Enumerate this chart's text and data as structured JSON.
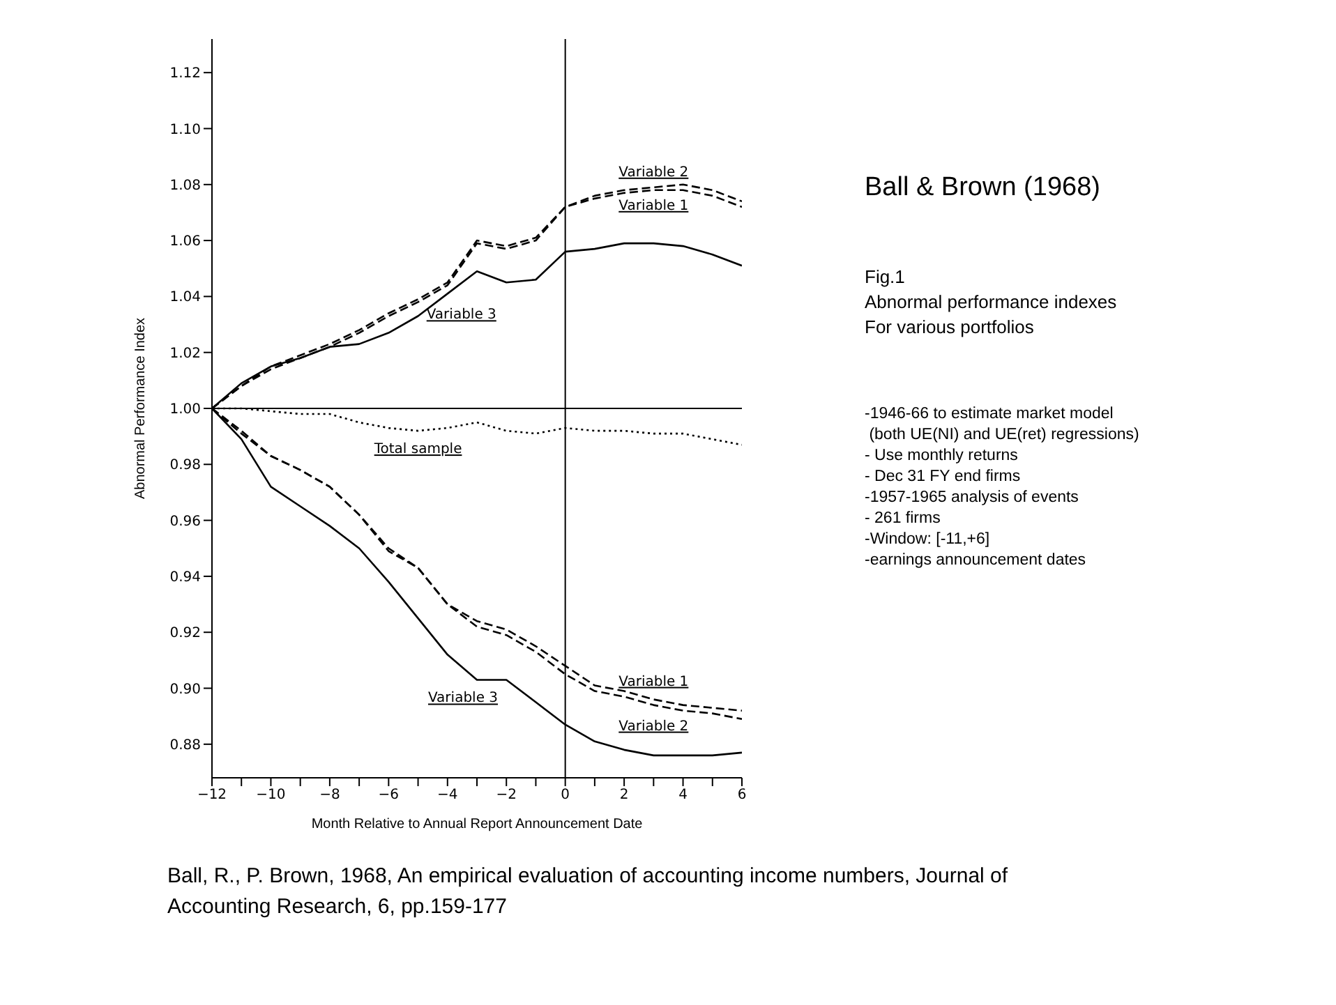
{
  "chart_data": {
    "type": "line",
    "title": "Ball & Brown (1968)",
    "subtitle": "Fig.1\nAbnormal performance indexes\nFor various portfolios",
    "xlabel": "Month Relative to Annual Report  Announcement Date",
    "ylabel": "Abnormal Performance Index",
    "x": [
      -12,
      -11,
      -10,
      -9,
      -8,
      -7,
      -6,
      -5,
      -4,
      -3,
      -2,
      -1,
      0,
      1,
      2,
      3,
      4,
      5,
      6
    ],
    "series": [
      {
        "name": "Variable 1",
        "color": "#000000",
        "line_style": "dashed",
        "values": [
          1.0,
          1.008,
          1.014,
          1.018,
          1.022,
          1.027,
          1.033,
          1.038,
          1.044,
          1.059,
          1.057,
          1.06,
          1.072,
          1.075,
          1.077,
          1.078,
          1.078,
          1.076,
          1.072
        ]
      },
      {
        "name": "Variable 2",
        "color": "#000000",
        "line_style": "dashed",
        "values": [
          1.0,
          1.008,
          1.015,
          1.019,
          1.023,
          1.028,
          1.034,
          1.039,
          1.045,
          1.06,
          1.058,
          1.061,
          1.072,
          1.076,
          1.078,
          1.079,
          1.08,
          1.078,
          1.074
        ]
      },
      {
        "name": "Variable 3",
        "color": "#000000",
        "line_style": "solid",
        "values": [
          1.0,
          1.009,
          1.015,
          1.018,
          1.022,
          1.023,
          1.027,
          1.033,
          1.041,
          1.049,
          1.045,
          1.046,
          1.056,
          1.057,
          1.059,
          1.059,
          1.058,
          1.055,
          1.051
        ]
      },
      {
        "name": "Variable 1",
        "color": "#000000",
        "line_style": "dashed",
        "values": [
          1.0,
          0.992,
          0.983,
          0.978,
          0.972,
          0.962,
          0.95,
          0.943,
          0.93,
          0.924,
          0.921,
          0.915,
          0.908,
          0.901,
          0.899,
          0.896,
          0.894,
          0.893,
          0.892
        ]
      },
      {
        "name": "Variable 2",
        "color": "#000000",
        "line_style": "dashed",
        "values": [
          1.0,
          0.991,
          0.983,
          0.978,
          0.972,
          0.962,
          0.949,
          0.943,
          0.93,
          0.922,
          0.919,
          0.913,
          0.905,
          0.899,
          0.897,
          0.894,
          0.892,
          0.891,
          0.889
        ]
      },
      {
        "name": "Variable 3",
        "color": "#000000",
        "line_style": "solid",
        "values": [
          1.0,
          0.989,
          0.972,
          0.965,
          0.958,
          0.95,
          0.938,
          0.925,
          0.912,
          0.903,
          0.903,
          0.895,
          0.887,
          0.881,
          0.878,
          0.876,
          0.876,
          0.876,
          0.877
        ]
      },
      {
        "name": "Total sample",
        "color": "#000000",
        "line_style": "dotted",
        "values": [
          1.0,
          1.0,
          0.999,
          0.998,
          0.998,
          0.995,
          0.993,
          0.992,
          0.993,
          0.995,
          0.992,
          0.991,
          0.993,
          0.992,
          0.992,
          0.991,
          0.991,
          0.989,
          0.987
        ]
      }
    ],
    "xlim": [
      -12,
      6
    ],
    "xticks": [
      {
        "value": -12,
        "label": "−12"
      },
      {
        "value": -11,
        "label": null
      },
      {
        "value": -10,
        "label": "−10"
      },
      {
        "value": -9,
        "label": null
      },
      {
        "value": -8,
        "label": "−8"
      },
      {
        "value": -7,
        "label": null
      },
      {
        "value": -6,
        "label": "−6"
      },
      {
        "value": -5,
        "label": null
      },
      {
        "value": -4,
        "label": "−4"
      },
      {
        "value": -3,
        "label": null
      },
      {
        "value": -2,
        "label": "−2"
      },
      {
        "value": -1,
        "label": null
      },
      0,
      {
        "value": 1,
        "label": null
      },
      2,
      {
        "value": 3,
        "label": null
      },
      4,
      {
        "value": 5,
        "label": null
      },
      6
    ],
    "ylim": [
      0.868,
      1.132
    ],
    "yticks": [
      {
        "value": 0.88,
        "label": "0.88"
      },
      {
        "value": 0.9,
        "label": "0.90"
      },
      {
        "value": 0.92,
        "label": "0.92"
      },
      {
        "value": 0.94,
        "label": "0.94"
      },
      {
        "value": 0.96,
        "label": "0.96"
      },
      {
        "value": 0.98,
        "label": "0.98"
      },
      {
        "value": 1.0,
        "label": "1.00"
      },
      {
        "value": 1.02,
        "label": "1.02"
      },
      {
        "value": 1.04,
        "label": "1.04"
      },
      {
        "value": 1.06,
        "label": "1.06"
      },
      {
        "value": 1.08,
        "label": "1.08"
      },
      {
        "value": 1.1,
        "label": "1.10"
      },
      {
        "value": 1.12,
        "label": "1.12"
      }
    ],
    "ref_lines": [
      {
        "axis": "y",
        "value": 1.0,
        "color": "#000000"
      },
      {
        "axis": "x",
        "value": 0,
        "color": "#000000"
      }
    ],
    "grid": false,
    "legend": false,
    "annotations": [
      "-1946-66 to estimate market model",
      "(both UE(NI) and UE(ret) regressions)",
      "- Use monthly returns",
      "- Dec 31 FY end firms",
      "-1957-1965 analysis of events",
      "- 261 firms",
      "-Window: [-11,+6]",
      "-earnings announcement dates",
      "Ball, R., P. Brown, 1968, An empirical evaluation of accounting income numbers, Journal of Accounting Research, 6, pp.159-177"
    ]
  }
}
